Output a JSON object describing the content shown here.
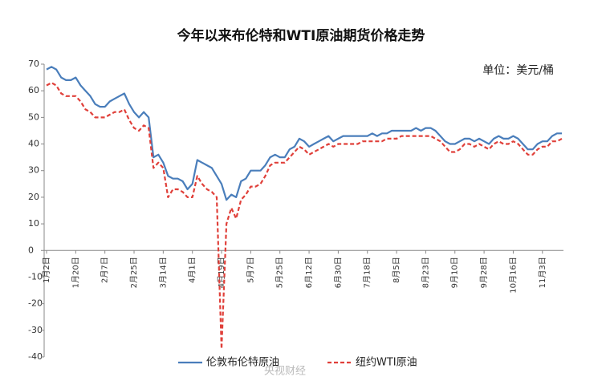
{
  "chart_data": {
    "type": "line",
    "title": "今年以来布伦特和WTI原油期货价格走势",
    "unit_label": "单位：美元/桶",
    "watermark": "央视财经",
    "categories": [
      "1月2日",
      null,
      null,
      null,
      null,
      null,
      "1月20日",
      null,
      null,
      null,
      null,
      null,
      "2月7日",
      null,
      null,
      null,
      null,
      null,
      "2月25日",
      null,
      null,
      null,
      null,
      null,
      "3月14日",
      null,
      null,
      null,
      null,
      null,
      "4月1日",
      null,
      null,
      null,
      null,
      null,
      "4月19日",
      null,
      null,
      null,
      null,
      null,
      "5月7日",
      null,
      null,
      null,
      null,
      null,
      "5月25日",
      null,
      null,
      null,
      null,
      null,
      "6月12日",
      null,
      null,
      null,
      null,
      null,
      "6月30日",
      null,
      null,
      null,
      null,
      null,
      "7月18日",
      null,
      null,
      null,
      null,
      null,
      "8月5日",
      null,
      null,
      null,
      null,
      null,
      "8月23日",
      null,
      null,
      null,
      null,
      null,
      "9月10日",
      null,
      null,
      null,
      null,
      null,
      "9月28日",
      null,
      null,
      null,
      null,
      null,
      "10月16日",
      null,
      null,
      null,
      null,
      null,
      "11月3日",
      null,
      null,
      null,
      null
    ],
    "series": [
      {
        "name": "伦敦布伦特原油",
        "color": "#4a7ebb",
        "dashed": false,
        "values": [
          68,
          69,
          68,
          65,
          64,
          64,
          65,
          62,
          60,
          58,
          55,
          54,
          54,
          56,
          57,
          58,
          59,
          55,
          52,
          50,
          52,
          50,
          35,
          36,
          33,
          28,
          27,
          27,
          26,
          23,
          25,
          34,
          33,
          32,
          31,
          28,
          25,
          19,
          21,
          20,
          26,
          27,
          30,
          30,
          30,
          32,
          35,
          36,
          35,
          35,
          38,
          39,
          42,
          41,
          39,
          40,
          41,
          42,
          43,
          41,
          42,
          43,
          43,
          43,
          43,
          43,
          43,
          44,
          43,
          44,
          44,
          45,
          45,
          45,
          45,
          45,
          46,
          45,
          46,
          46,
          45,
          43,
          41,
          40,
          40,
          41,
          42,
          42,
          41,
          42,
          41,
          40,
          42,
          43,
          42,
          42,
          43,
          42,
          40,
          38,
          38,
          40,
          41,
          41,
          43,
          44,
          44
        ]
      },
      {
        "name": "纽约WTI原油",
        "color": "#e0403a",
        "dashed": true,
        "values": [
          62,
          63,
          62,
          59,
          58,
          58,
          58,
          56,
          53,
          52,
          50,
          50,
          50,
          51,
          52,
          52,
          53,
          49,
          46,
          45,
          47,
          46,
          31,
          33,
          31,
          20,
          23,
          23,
          22,
          20,
          20,
          28,
          25,
          23,
          22,
          20,
          -37,
          10,
          16,
          12,
          19,
          21,
          24,
          24,
          25,
          28,
          32,
          33,
          33,
          33,
          35,
          37,
          39,
          38,
          36,
          37,
          38,
          39,
          40,
          39,
          40,
          40,
          40,
          40,
          40,
          41,
          41,
          41,
          41,
          41,
          42,
          42,
          42,
          43,
          43,
          43,
          43,
          43,
          43,
          43,
          42,
          41,
          39,
          37,
          37,
          38,
          40,
          40,
          39,
          40,
          39,
          38,
          40,
          41,
          40,
          40,
          41,
          40,
          38,
          36,
          36,
          38,
          39,
          39,
          41,
          41,
          42
        ]
      }
    ],
    "ylim": [
      -40,
      70
    ],
    "yticks": [
      -40,
      -30,
      -20,
      -10,
      0,
      10,
      20,
      30,
      40,
      50,
      60,
      70
    ],
    "grid": false
  }
}
